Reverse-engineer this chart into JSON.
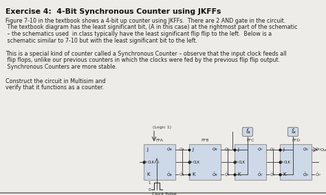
{
  "title": "Exercise 4:  4-Bit Synchronous Counter using JKFFs",
  "p1_line1": "Figure 7-10 in the textbook shows a 4-bit up counter using JKFFs.  There are 2 AND gate in the circuit.",
  "p1_line2": " The textbook diagram has the least significant bit, (A in this case) at the rightmost part of the schematic",
  "p1_line3": " – the schematics used  in class typically have the least significant flip flip to the left.  Below is a",
  "p1_line4": " schematic similar to 7-10 but with the least significant bit to the left.",
  "p2_line1": "This is a special kind of counter called a Synchronous Counter – observe that the input clock feeds all",
  "p2_line2": " flip flops, unlike our previous counters in which the clocks were fed by the previous flip flip output.",
  "p2_line3": " Synchronous Counters are more stable.",
  "side_text1": "Construct the circuit in Multisim and",
  "side_text2": "verify that it functions as a counter.",
  "bg_color": "#eeece8",
  "title_color": "#111111",
  "text_color": "#222222",
  "ff_fill": "#cdd8e8",
  "ff_edge": "#999999",
  "ff_names": [
    "FFA",
    "FFB",
    "FFC",
    "FFD"
  ],
  "logic1_label": "(Logic 1)",
  "clk_label": "Clock Pulse",
  "out_label": "Out"
}
